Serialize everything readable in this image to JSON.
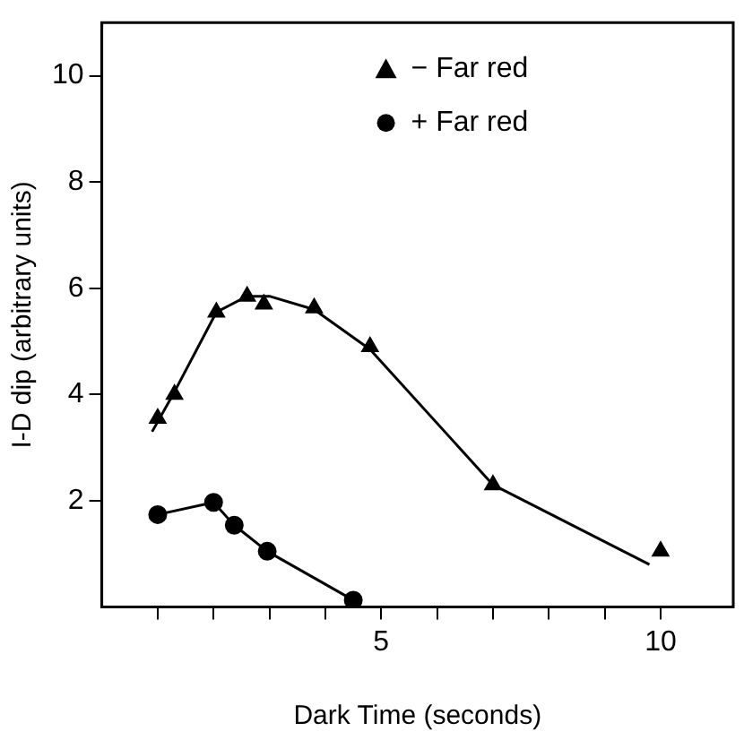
{
  "chart_data": {
    "type": "scatter",
    "xlabel": "Dark Time (seconds)",
    "ylabel": "I-D dip (arbitrary units)",
    "xlim": [
      0,
      11.3
    ],
    "ylim": [
      0,
      11
    ],
    "xticks": [
      {
        "value": 1,
        "label": null
      },
      {
        "value": 2,
        "label": null
      },
      {
        "value": 3,
        "label": null
      },
      {
        "value": 4,
        "label": null
      },
      5,
      {
        "value": 6,
        "label": null
      },
      {
        "value": 7,
        "label": null
      },
      {
        "value": 8,
        "label": null
      },
      {
        "value": 9,
        "label": null
      },
      10
    ],
    "yticks": [
      2,
      4,
      6,
      8,
      10
    ],
    "grid": false,
    "legend": "top right",
    "series": [
      {
        "name": "− Far red",
        "color": "#000000",
        "marker": "triangle",
        "x": [
          1,
          1.3,
          2.05,
          2.6,
          2.9,
          3.8,
          4.8,
          7,
          10
        ],
        "values": [
          3.55,
          4.0,
          5.55,
          5.85,
          5.7,
          5.63,
          4.9,
          2.3,
          1.05
        ]
      },
      {
        "type": "line",
        "color": "#000000",
        "marker": "none",
        "x": [
          0.9,
          1.3,
          2.05,
          2.6,
          3.0,
          3.8,
          4.8,
          7,
          9.8
        ],
        "values": [
          3.3,
          4.05,
          5.55,
          5.85,
          5.85,
          5.6,
          4.85,
          2.3,
          0.8
        ]
      },
      {
        "name": "+ Far red",
        "type": "line",
        "color": "#000000",
        "marker": "circle",
        "x": [
          1,
          2,
          2.37,
          2.96,
          4.5
        ],
        "values": [
          1.74,
          1.97,
          1.54,
          1.05,
          0.13
        ]
      }
    ]
  }
}
